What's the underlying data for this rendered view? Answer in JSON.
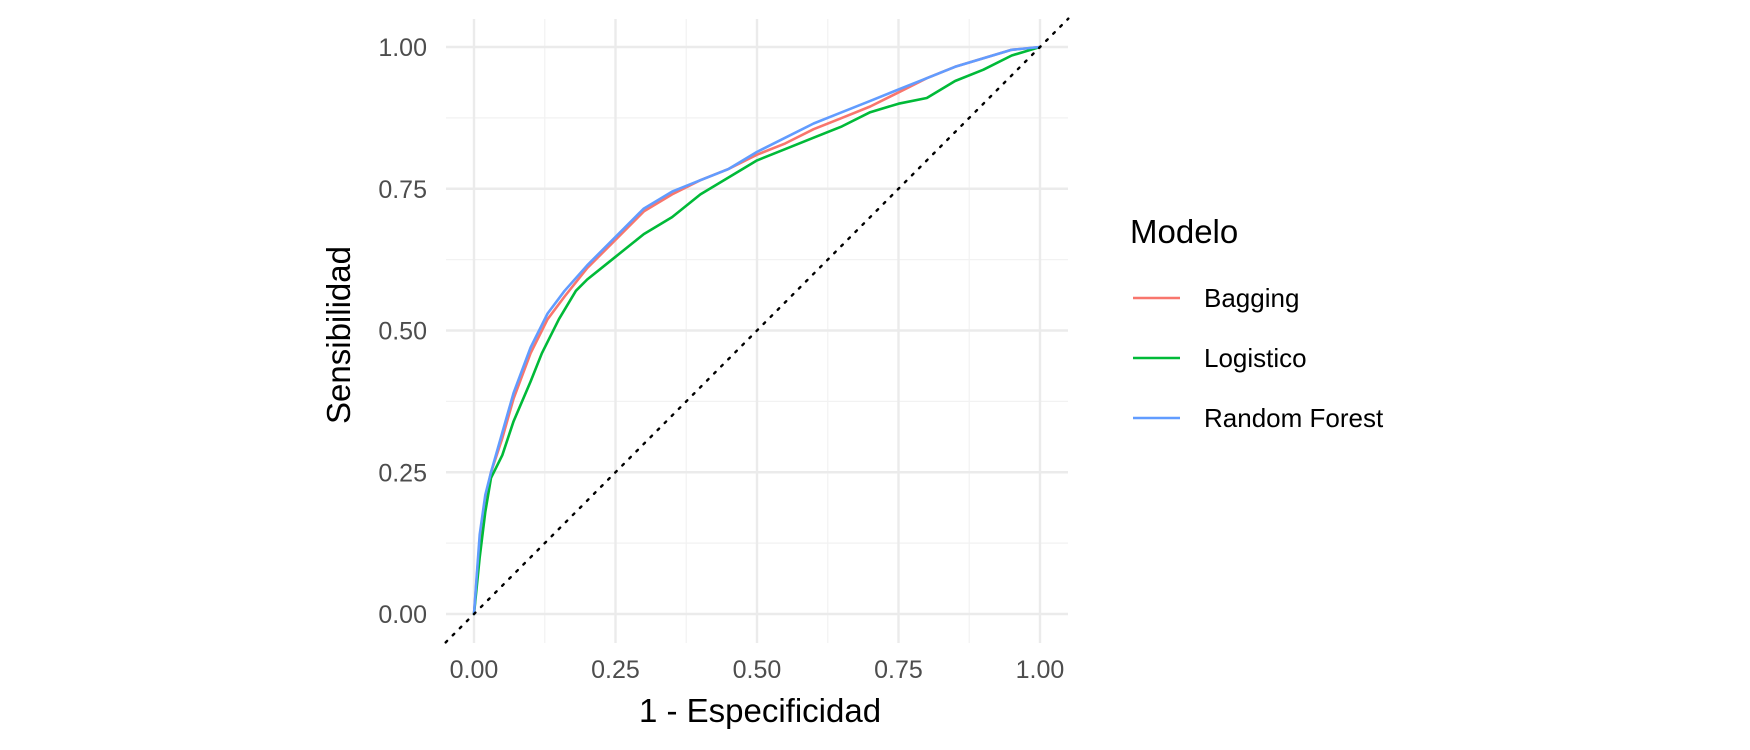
{
  "chart_data": {
    "type": "line",
    "title": "",
    "xlabel": "1 - Especificidad",
    "ylabel": "Sensibilidad",
    "xlim": [
      0,
      1
    ],
    "ylim": [
      0,
      1
    ],
    "x_ticks": [
      "0.00",
      "0.25",
      "0.50",
      "0.75",
      "1.00"
    ],
    "y_ticks": [
      "0.00",
      "0.25",
      "0.50",
      "0.75",
      "1.00"
    ],
    "grid": true,
    "legend": {
      "title": "Modelo",
      "position": "right"
    },
    "reference_line": {
      "style": "dotted",
      "color": "#000000",
      "x": [
        0,
        1
      ],
      "y": [
        0,
        1
      ]
    },
    "series": [
      {
        "name": "Bagging",
        "color": "#F8766D",
        "x": [
          0,
          0.01,
          0.02,
          0.03,
          0.05,
          0.07,
          0.1,
          0.13,
          0.16,
          0.2,
          0.25,
          0.3,
          0.35,
          0.4,
          0.45,
          0.5,
          0.55,
          0.6,
          0.65,
          0.7,
          0.75,
          0.8,
          0.85,
          0.9,
          0.95,
          1.0
        ],
        "y": [
          0,
          0.13,
          0.2,
          0.25,
          0.31,
          0.38,
          0.46,
          0.52,
          0.56,
          0.61,
          0.66,
          0.71,
          0.74,
          0.765,
          0.785,
          0.81,
          0.83,
          0.855,
          0.875,
          0.895,
          0.92,
          0.945,
          0.965,
          0.98,
          0.995,
          1.0
        ]
      },
      {
        "name": "Logistico",
        "color": "#00BA38",
        "x": [
          0,
          0.01,
          0.02,
          0.03,
          0.05,
          0.07,
          0.1,
          0.12,
          0.15,
          0.18,
          0.2,
          0.25,
          0.3,
          0.35,
          0.4,
          0.45,
          0.5,
          0.55,
          0.6,
          0.65,
          0.7,
          0.75,
          0.8,
          0.85,
          0.9,
          0.95,
          1.0
        ],
        "y": [
          0,
          0.1,
          0.18,
          0.24,
          0.28,
          0.34,
          0.41,
          0.46,
          0.52,
          0.57,
          0.59,
          0.63,
          0.67,
          0.7,
          0.74,
          0.77,
          0.8,
          0.82,
          0.84,
          0.86,
          0.885,
          0.9,
          0.91,
          0.94,
          0.96,
          0.985,
          1.0
        ]
      },
      {
        "name": "Random Forest",
        "color": "#619CFF",
        "x": [
          0,
          0.01,
          0.02,
          0.03,
          0.05,
          0.07,
          0.1,
          0.13,
          0.16,
          0.2,
          0.25,
          0.3,
          0.35,
          0.4,
          0.45,
          0.5,
          0.55,
          0.6,
          0.65,
          0.7,
          0.75,
          0.8,
          0.85,
          0.9,
          0.95,
          1.0
        ],
        "y": [
          0,
          0.14,
          0.21,
          0.25,
          0.32,
          0.39,
          0.47,
          0.53,
          0.57,
          0.615,
          0.665,
          0.715,
          0.745,
          0.765,
          0.785,
          0.815,
          0.84,
          0.865,
          0.885,
          0.905,
          0.925,
          0.945,
          0.965,
          0.98,
          0.995,
          1.0
        ]
      }
    ]
  }
}
